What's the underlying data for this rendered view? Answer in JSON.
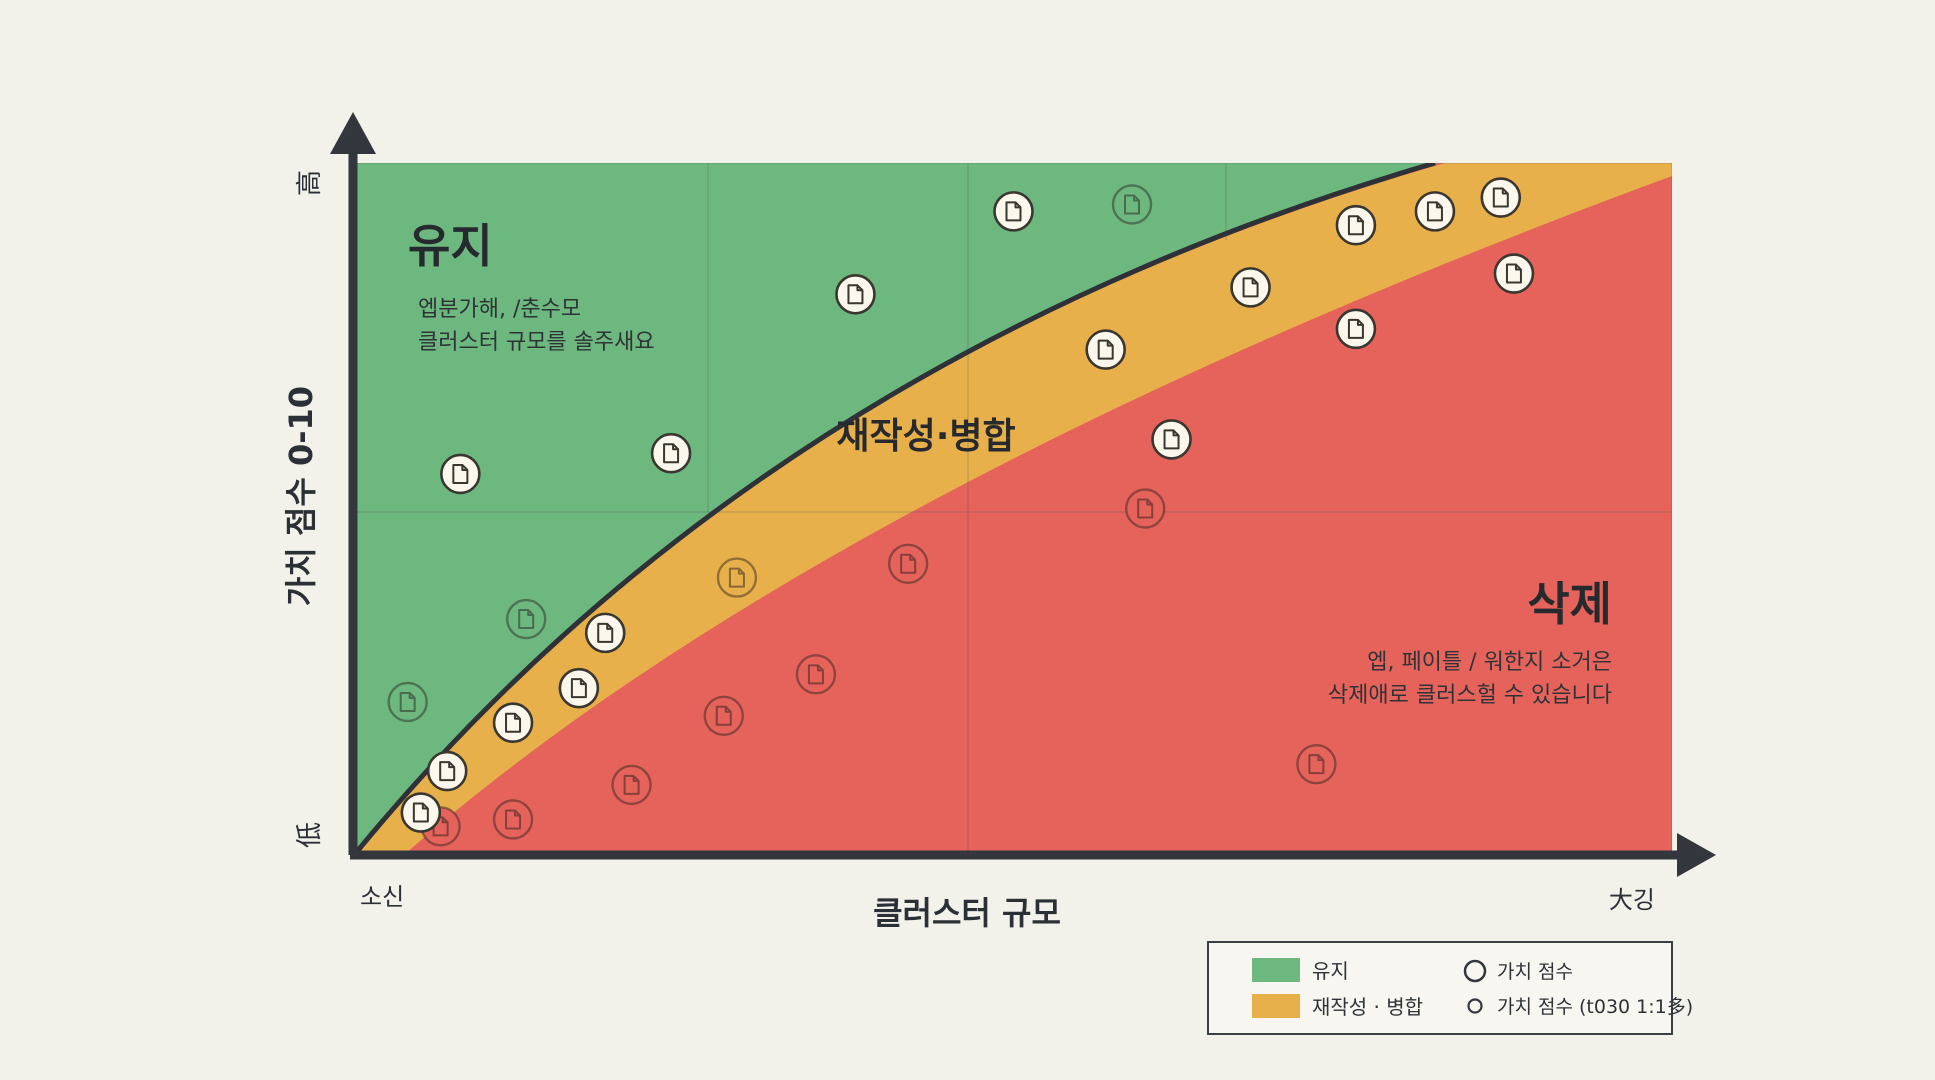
{
  "chart_data": {
    "type": "scatter",
    "xlabel": "클러스터 규모",
    "ylabel": "가치 점수 0-10",
    "x_tick_low": "소신",
    "x_tick_high": "大깅",
    "y_tick_high": "高",
    "y_tick_low": "低",
    "xlim": [
      0,
      10
    ],
    "ylim": [
      0,
      10
    ],
    "grid": true,
    "regions": [
      {
        "name": "유지",
        "color": "#6db87e",
        "desc_line1": "엡분가해, /춘수모",
        "desc_line2": "클러스터 규모를 솔주새요"
      },
      {
        "name": "재작성·병합",
        "color": "#e8b04a"
      },
      {
        "name": "삭제",
        "color": "#e5635a",
        "desc_line1": "엡, 페이틀 / 워한지 소거은",
        "desc_line2": "삭제애로 클러스헐 수 있습니다"
      }
    ],
    "boundary_color": "#2e3238",
    "points_solid": [
      {
        "x": 0.5,
        "y": 0.6
      },
      {
        "x": 0.7,
        "y": 1.2
      },
      {
        "x": 1.2,
        "y": 1.9
      },
      {
        "x": 1.7,
        "y": 2.4
      },
      {
        "x": 1.9,
        "y": 3.2
      },
      {
        "x": 0.8,
        "y": 5.5
      },
      {
        "x": 2.4,
        "y": 5.8
      },
      {
        "x": 3.8,
        "y": 8.1
      },
      {
        "x": 5.0,
        "y": 9.3
      },
      {
        "x": 5.7,
        "y": 7.3
      },
      {
        "x": 6.2,
        "y": 6.0
      },
      {
        "x": 6.8,
        "y": 8.2
      },
      {
        "x": 7.6,
        "y": 7.6
      },
      {
        "x": 7.6,
        "y": 9.1
      },
      {
        "x": 8.2,
        "y": 9.3
      },
      {
        "x": 8.7,
        "y": 9.5
      },
      {
        "x": 8.8,
        "y": 8.4
      }
    ],
    "points_faded": [
      {
        "x": 0.4,
        "y": 2.2,
        "region": "유지"
      },
      {
        "x": 1.3,
        "y": 3.4,
        "region": "유지"
      },
      {
        "x": 2.9,
        "y": 4.0,
        "region": "재작성·병합"
      },
      {
        "x": 5.9,
        "y": 9.4,
        "region": "유지"
      },
      {
        "x": 0.65,
        "y": 0.4,
        "region": "삭제"
      },
      {
        "x": 1.2,
        "y": 0.5,
        "region": "삭제"
      },
      {
        "x": 2.1,
        "y": 1.0,
        "region": "삭제"
      },
      {
        "x": 2.8,
        "y": 2.0,
        "region": "삭제"
      },
      {
        "x": 3.5,
        "y": 2.6,
        "region": "삭제"
      },
      {
        "x": 4.2,
        "y": 4.2,
        "region": "삭제"
      },
      {
        "x": 6.0,
        "y": 5.0,
        "region": "삭제"
      },
      {
        "x": 7.3,
        "y": 1.3,
        "region": "삭제"
      }
    ],
    "legend": {
      "position": "bottom-right",
      "item_keep": "유지",
      "item_merge": "재작성 · 병합",
      "item_point_large": "가치 점수",
      "item_point_small": "가치 점수 (t030 1:1多)"
    }
  }
}
